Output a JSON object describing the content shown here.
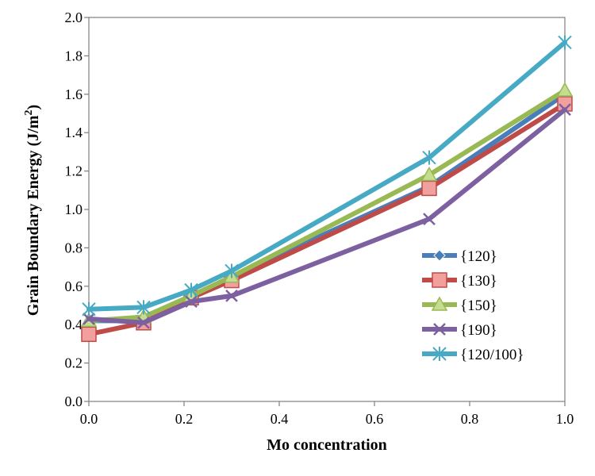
{
  "chart_data": {
    "type": "line",
    "title": "",
    "xlabel": "Mo concentration",
    "ylabel_main": "Grain Boundary Energy (J/m",
    "ylabel_sup": "2",
    "ylabel_close": ")",
    "xlim": [
      0,
      1
    ],
    "ylim": [
      0,
      2
    ],
    "x_ticks": [
      "0.0",
      "0.2",
      "0.4",
      "0.6",
      "0.8",
      "1.0"
    ],
    "y_ticks": [
      "0.0",
      "0.2",
      "0.4",
      "0.6",
      "0.8",
      "1.0",
      "1.2",
      "1.4",
      "1.6",
      "1.8",
      "2.0"
    ],
    "grid": false,
    "legend_position": "right",
    "series": [
      {
        "name": "{120}",
        "color": "#4a7ebb",
        "marker": "diamond",
        "x": [
          0,
          0.115,
          0.215,
          0.3,
          0.715,
          1.0
        ],
        "y": [
          0.42,
          0.42,
          0.54,
          0.65,
          1.12,
          1.6
        ]
      },
      {
        "name": "{130}",
        "color": "#be4b48",
        "marker": "square",
        "x": [
          0,
          0.115,
          0.215,
          0.3,
          0.715,
          1.0
        ],
        "y": [
          0.35,
          0.41,
          0.54,
          0.63,
          1.11,
          1.55
        ]
      },
      {
        "name": "{150}",
        "color": "#98b954",
        "marker": "triangle",
        "x": [
          0,
          0.115,
          0.215,
          0.3,
          0.715,
          1.0
        ],
        "y": [
          0.42,
          0.44,
          0.55,
          0.65,
          1.18,
          1.62
        ]
      },
      {
        "name": "{190}",
        "color": "#7d60a0",
        "marker": "x",
        "x": [
          0,
          0.115,
          0.215,
          0.3,
          0.715,
          1.0
        ],
        "y": [
          0.43,
          0.41,
          0.52,
          0.55,
          0.95,
          1.52
        ]
      },
      {
        "name": "{120/100}",
        "color": "#46aac5",
        "marker": "star",
        "x": [
          0,
          0.115,
          0.215,
          0.3,
          0.715,
          1.0
        ],
        "y": [
          0.48,
          0.49,
          0.58,
          0.68,
          1.27,
          1.87
        ]
      }
    ]
  }
}
